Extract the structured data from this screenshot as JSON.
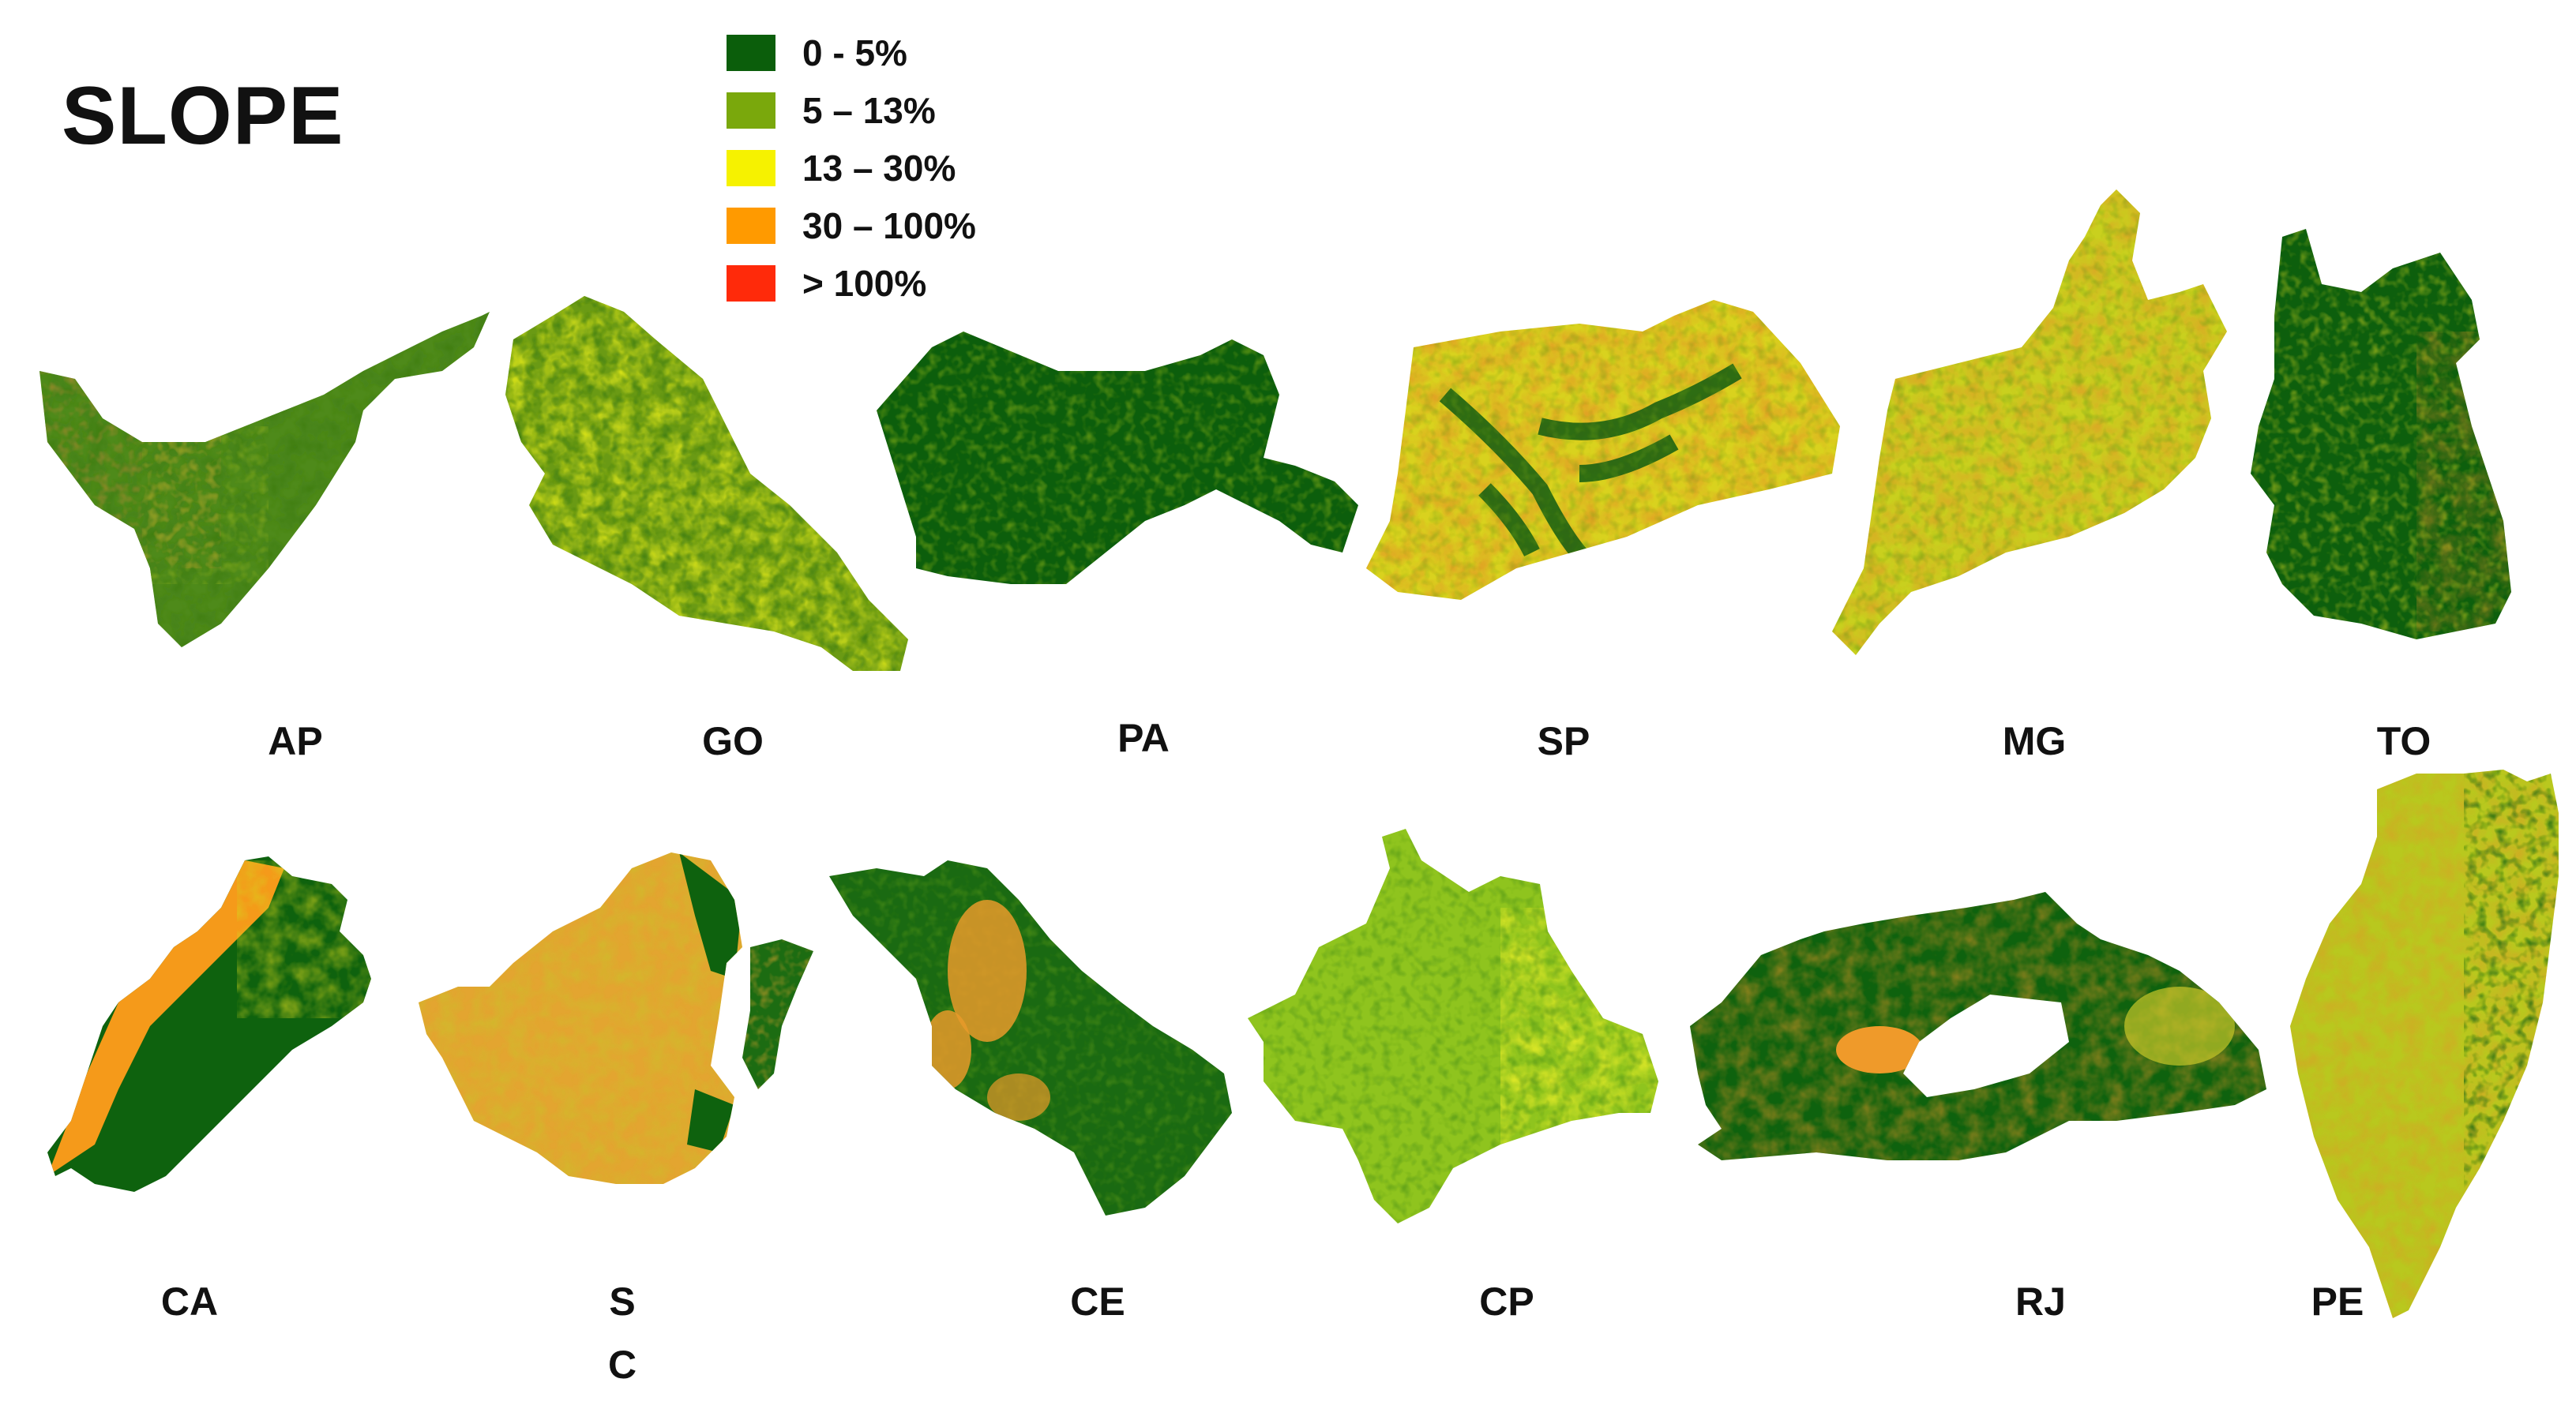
{
  "title": "SLOPE",
  "legend": [
    {
      "label": "0 - 5%",
      "color": "#0b5e0b"
    },
    {
      "label": "5 – 13%",
      "color": "#7aa80c"
    },
    {
      "label": "13 – 30%",
      "color": "#f6f200"
    },
    {
      "label": "30 – 100%",
      "color": "#ff9a00"
    },
    {
      "label": "> 100%",
      "color": "#ff2a0a"
    }
  ],
  "regions": [
    {
      "label": "AP"
    },
    {
      "label": "GO"
    },
    {
      "label": "PA"
    },
    {
      "label": "SP"
    },
    {
      "label": "MG"
    },
    {
      "label": "TO"
    },
    {
      "label": "CA"
    },
    {
      "label": "S"
    },
    {
      "label": "C"
    },
    {
      "label": "CE"
    },
    {
      "label": "CP"
    },
    {
      "label": "RJ"
    },
    {
      "label": "PE"
    }
  ]
}
